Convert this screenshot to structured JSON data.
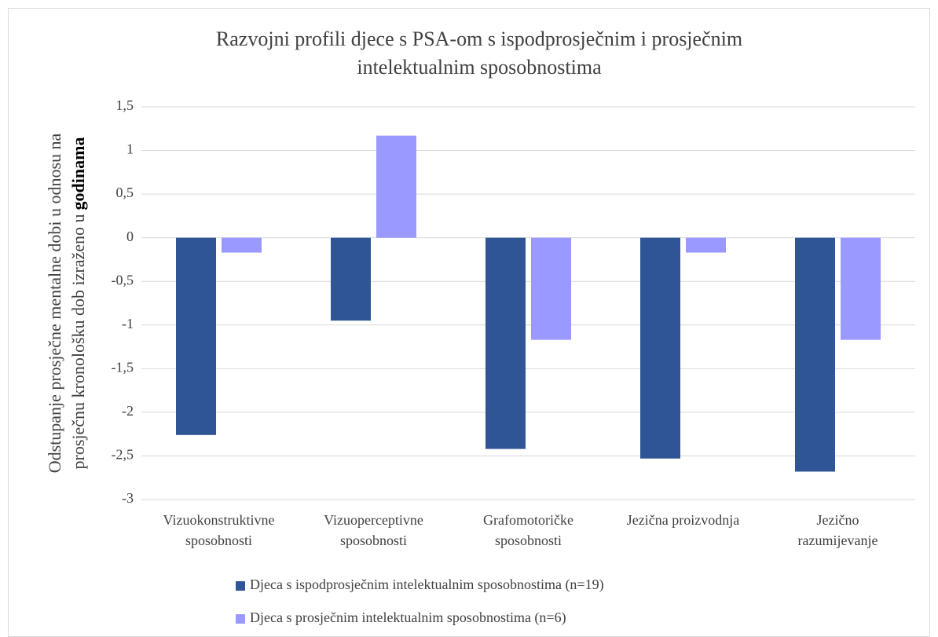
{
  "chart_data": {
    "type": "bar",
    "title": [
      "Razvojni profili djece s PSA-om s ispodprosječnim i prosječnim",
      "intelektualnim sposobnostima"
    ],
    "y_label": [
      "Odstupanje prosječne mentalne dobi u odnosu na",
      "prosječnu kronološku dob izraženo u",
      "godinama"
    ],
    "categories": [
      [
        "Vizuokonstruktivne",
        "sposobnosti"
      ],
      [
        "Vizuoperceptivne",
        "sposobnosti"
      ],
      [
        "Grafomotoričke",
        "sposobnosti"
      ],
      [
        "Jezična proizvodnja"
      ],
      [
        "Jezično",
        "razumijevanje"
      ]
    ],
    "series": [
      {
        "name": "Djeca s ispodprosječnim intelektualnim sposobnostima (n=19)",
        "color": "#2f5597",
        "values": [
          -2.26,
          -0.95,
          -2.42,
          -2.53,
          -2.68
        ]
      },
      {
        "name": "Djeca s prosječnim intelektualnim sposobnostima (n=6)",
        "color": "#9999ff",
        "values": [
          -0.17,
          1.17,
          -1.17,
          -0.17,
          -1.17
        ]
      }
    ],
    "ylim": [
      -3,
      1.5
    ],
    "yticks": [
      {
        "value": -3,
        "label": "-3"
      },
      {
        "value": -2.5,
        "label": "-2,5"
      },
      -2,
      {
        "value": -1.5,
        "label": "-1,5"
      },
      -1,
      {
        "value": -0.5,
        "label": "-0,5"
      },
      0,
      {
        "value": 0.5,
        "label": "0,5"
      },
      1,
      {
        "value": 1.5,
        "label": "1,5"
      }
    ],
    "grid": true,
    "legend": "bottom"
  }
}
